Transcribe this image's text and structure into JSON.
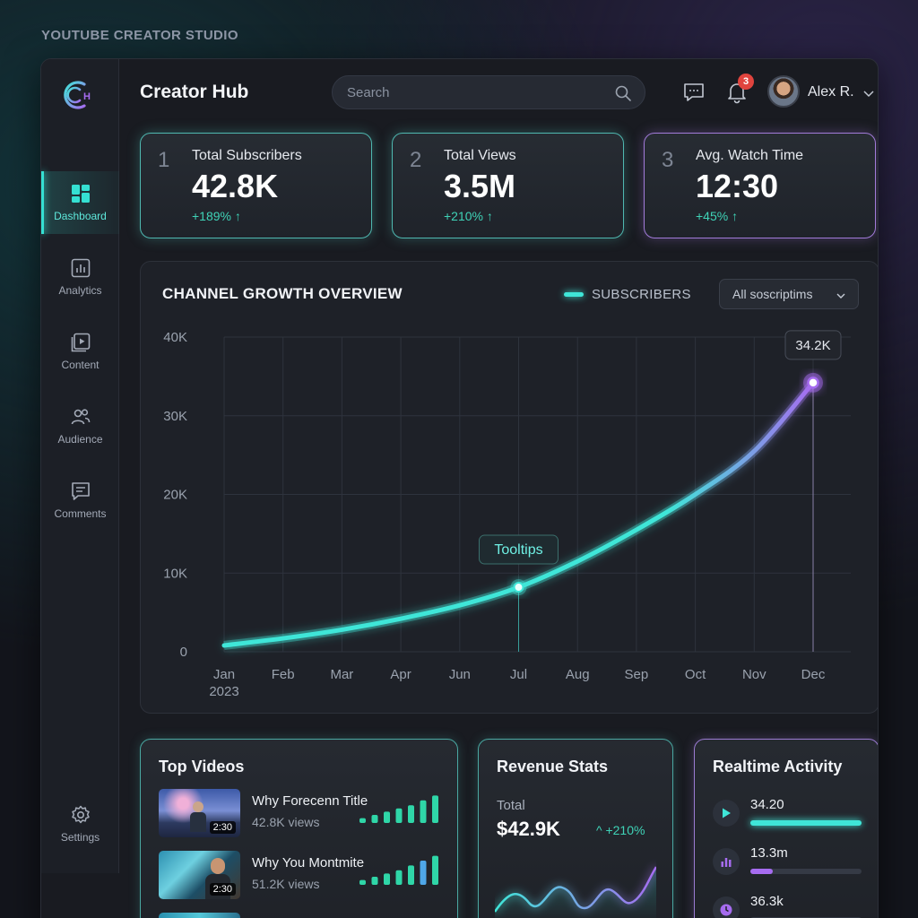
{
  "caption": "YOUTUBE CREATOR STUDIO",
  "header": {
    "title": "Creator Hub",
    "search_placeholder": "Search",
    "notification_count": "3",
    "user_name": "Alex R."
  },
  "sidebar": {
    "items": [
      {
        "label": "Dashboard",
        "icon": "dashboard-icon",
        "active": true
      },
      {
        "label": "Analytics",
        "icon": "analytics-icon",
        "active": false
      },
      {
        "label": "Content",
        "icon": "content-icon",
        "active": false
      },
      {
        "label": "Audience",
        "icon": "audience-icon",
        "active": false
      },
      {
        "label": "Comments",
        "icon": "comments-icon",
        "active": false
      }
    ],
    "settings_label": "Settings"
  },
  "stats": [
    {
      "num": "1",
      "label": "Total Subscribers",
      "value": "42.8K",
      "change": "+189% ↑"
    },
    {
      "num": "2",
      "label": "Total Views",
      "value": "3.5M",
      "change": "+210% ↑"
    },
    {
      "num": "3",
      "label": "Avg. Watch Time",
      "value": "12:30",
      "change": "+45% ↑"
    }
  ],
  "chart": {
    "title": "CHANNEL GROWTH OVERVIEW",
    "legend_label": "SUBSCRIBERS",
    "filter_value": "All soscriptims",
    "tooltip_label": "Tooltips",
    "peak_label": "34.2K",
    "year_label": "2023"
  },
  "chart_data": {
    "type": "line",
    "x": [
      "Jan",
      "Feb",
      "Mar",
      "Apr",
      "Jun",
      "Jul",
      "Aug",
      "Sep",
      "Oct",
      "Nov",
      "Dec"
    ],
    "series": [
      {
        "name": "SUBSCRIBERS",
        "values": [
          800,
          1700,
          2800,
          4200,
          5900,
          8200,
          11500,
          15500,
          20000,
          25500,
          34200
        ]
      }
    ],
    "yticks": [
      "0",
      "10K",
      "20K",
      "30K",
      "40K"
    ],
    "ylim": [
      0,
      40000
    ],
    "grid": true,
    "highlight_index": 5,
    "peak_index": 10,
    "colors": {
      "line": "#3fe6d8",
      "line_end": "#a66cf0"
    }
  },
  "top_videos": {
    "title": "Top Videos",
    "items": [
      {
        "title": "Why Forecenn Title",
        "views": "42.8K views",
        "duration": "2:30",
        "bars": [
          0.15,
          0.25,
          0.35,
          0.45,
          0.55,
          0.7,
          0.85
        ]
      },
      {
        "title": "Why You Montmite",
        "views": "51.2K views",
        "duration": "2:30",
        "bars": [
          0.15,
          0.25,
          0.35,
          0.45,
          0.6,
          0.75,
          0.9
        ]
      }
    ]
  },
  "revenue": {
    "title": "Revenue Stats",
    "total_label": "Total",
    "total_value": "$42.9K",
    "change": "^ +210%"
  },
  "activity": {
    "title": "Realtime Activity",
    "items": [
      {
        "value": "34.20",
        "icon": "play-icon",
        "level": 1.0,
        "color": "#3fe6d8"
      },
      {
        "value": "13.3m",
        "icon": "bar-chart-icon",
        "level": 0.2,
        "color": "#a66cf0"
      },
      {
        "value": "36.3k",
        "icon": "clock-icon",
        "level": 0.0,
        "color": "#a66cf0"
      }
    ]
  }
}
